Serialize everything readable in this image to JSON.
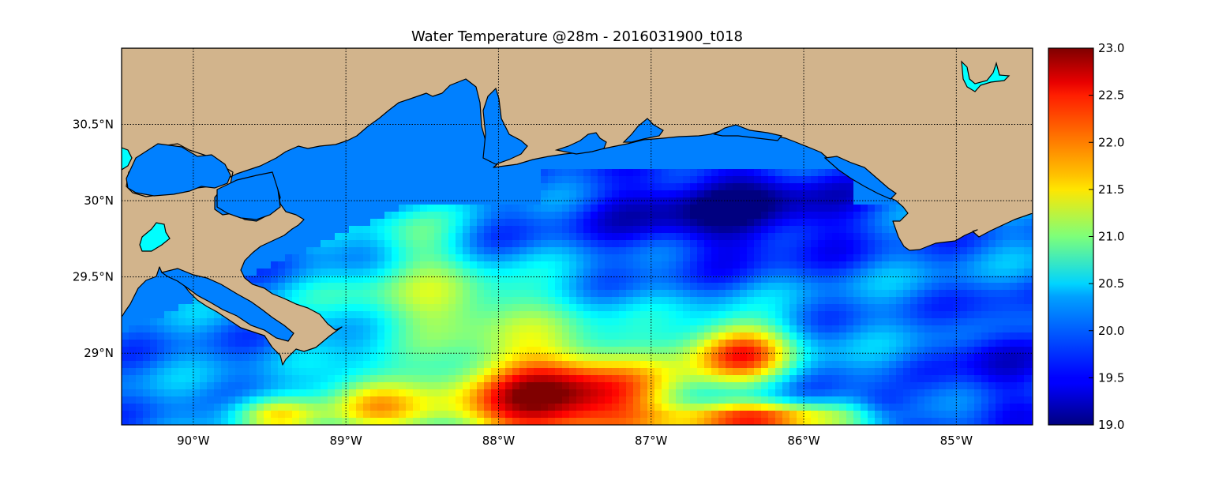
{
  "map": {
    "title": "Water Temperature @28m - 2016031900_t018",
    "extent": {
      "lon_min": -90.47,
      "lon_max": -84.5,
      "lat_min": 28.53,
      "lat_max": 31.0
    },
    "meridians": [
      {
        "lon": -90,
        "label": "90°W"
      },
      {
        "lon": -89,
        "label": "89°W"
      },
      {
        "lon": -88,
        "label": "88°W"
      },
      {
        "lon": -87,
        "label": "87°W"
      },
      {
        "lon": -86,
        "label": "86°W"
      },
      {
        "lon": -85,
        "label": "85°W"
      }
    ],
    "parallels": [
      {
        "lat": 30.5,
        "label": "30.5°N"
      },
      {
        "lat": 30.0,
        "label": "30°N"
      },
      {
        "lat": 29.5,
        "label": "29.5°N"
      },
      {
        "lat": 29.0,
        "label": "29°N"
      }
    ],
    "colors": {
      "land": "#d2b48c",
      "no_data_water": "#0080ff",
      "lakes": "#00ffff",
      "coastline": "#000000",
      "gridlines": "#000000"
    },
    "colorbar": {
      "min": 19.0,
      "max": 23.0,
      "ticks": [
        "23.0",
        "22.5",
        "22.0",
        "21.5",
        "21.0",
        "20.5",
        "20.0",
        "19.5",
        "19.0"
      ],
      "colormap": "jet"
    }
  }
}
